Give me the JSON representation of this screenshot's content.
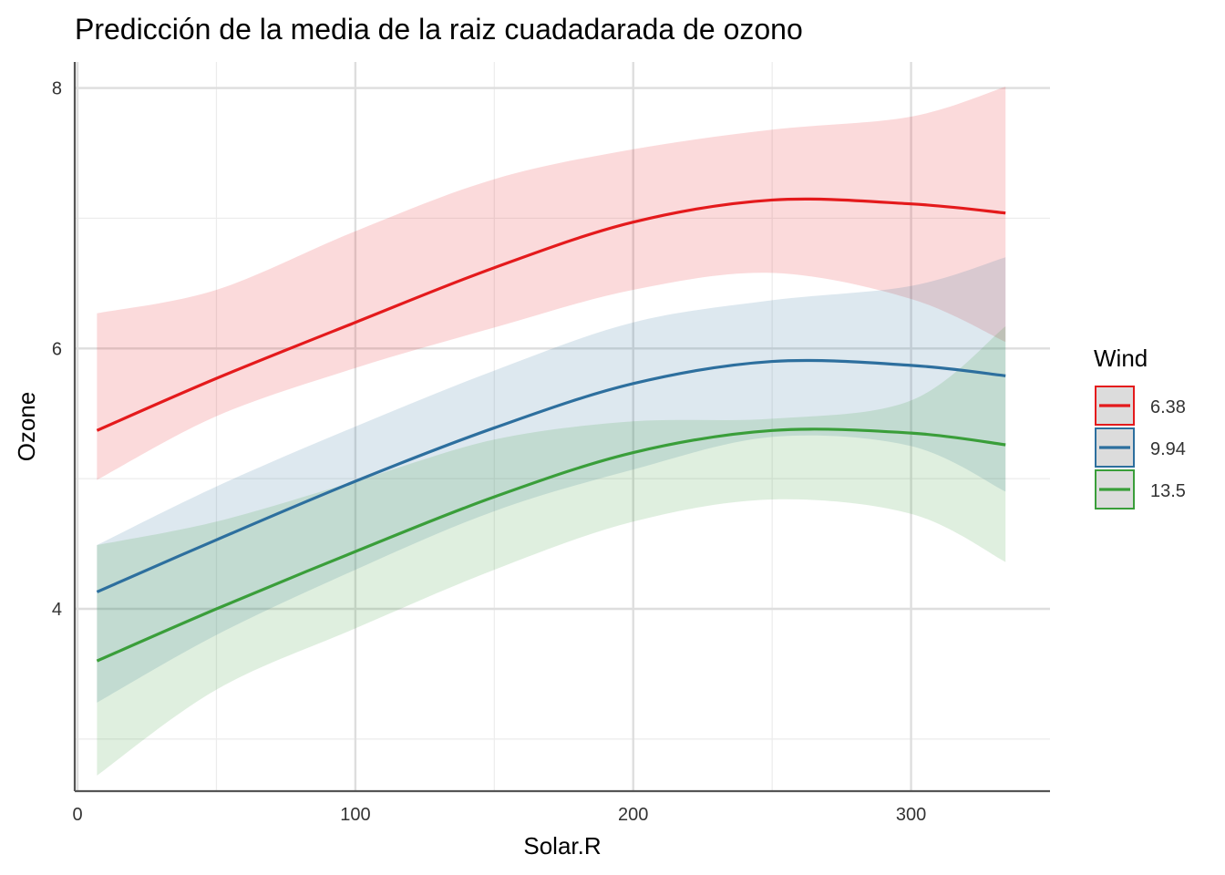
{
  "chart_data": {
    "type": "line",
    "title": "Predicción de la media de la raiz cuadadarada de ozono",
    "xlabel": "Solar.R",
    "ylabel": "Ozone",
    "xlim": [
      -1,
      350
    ],
    "ylim": [
      2.6,
      8.2
    ],
    "x_ticks": [
      0,
      100,
      200,
      300
    ],
    "y_ticks": [
      4,
      6,
      8
    ],
    "x_minor": [
      50,
      150,
      250
    ],
    "y_minor": [
      3,
      5,
      7
    ],
    "legend": {
      "title": "Wind",
      "position": "right"
    },
    "x": [
      7,
      50,
      100,
      150,
      200,
      250,
      300,
      334
    ],
    "series": [
      {
        "name": "6.38",
        "color": "#E41A1C",
        "fill": "#F8D6DA",
        "values": [
          5.37,
          5.77,
          6.2,
          6.62,
          6.97,
          7.14,
          7.11,
          7.04
        ],
        "lower": [
          4.99,
          5.48,
          5.85,
          6.16,
          6.45,
          6.58,
          6.38,
          6.05
        ],
        "upper": [
          6.27,
          6.45,
          6.9,
          7.3,
          7.53,
          7.68,
          7.78,
          8.01
        ]
      },
      {
        "name": "9.94",
        "color": "#2D6F9E",
        "fill": "#DCE3EE",
        "values": [
          4.13,
          4.53,
          4.98,
          5.39,
          5.73,
          5.9,
          5.87,
          5.79
        ],
        "lower": [
          3.28,
          3.8,
          4.3,
          4.75,
          5.07,
          5.32,
          5.25,
          4.9
        ],
        "upper": [
          4.49,
          4.94,
          5.4,
          5.83,
          6.2,
          6.37,
          6.48,
          6.7
        ]
      },
      {
        "name": "13.5",
        "color": "#3A9E3A",
        "fill": "#DDEBDA",
        "values": [
          3.6,
          4.0,
          4.44,
          4.86,
          5.2,
          5.37,
          5.35,
          5.26
        ],
        "lower": [
          2.72,
          3.38,
          3.85,
          4.3,
          4.67,
          4.84,
          4.73,
          4.36
        ],
        "upper": [
          4.49,
          4.67,
          4.98,
          5.3,
          5.44,
          5.46,
          5.6,
          6.17
        ]
      }
    ]
  }
}
